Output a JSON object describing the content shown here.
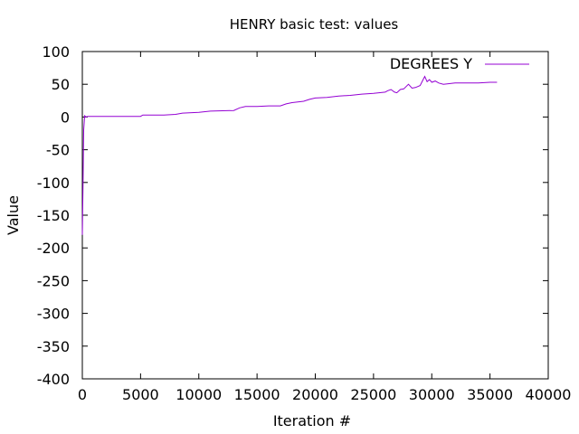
{
  "chart_data": {
    "type": "line",
    "title": "HENRY basic test: values",
    "xlabel": "Iteration #",
    "ylabel": "Value",
    "xlim": [
      0,
      40000
    ],
    "ylim": [
      -400,
      100
    ],
    "xticks": [
      0,
      5000,
      10000,
      15000,
      20000,
      25000,
      30000,
      35000,
      40000
    ],
    "yticks": [
      100,
      50,
      0,
      -50,
      -100,
      -150,
      -200,
      -250,
      -300,
      -350,
      -400
    ],
    "grid": false,
    "legend_position": "top-right",
    "series": [
      {
        "name": "DEGREES Y",
        "color": "#9400d3",
        "x": [
          0,
          60,
          120,
          200,
          300,
          500,
          1000,
          3000,
          5000,
          5200,
          7000,
          8000,
          8600,
          10000,
          11000,
          13000,
          13500,
          14000,
          15000,
          16000,
          17000,
          17500,
          18000,
          19000,
          19500,
          20000,
          21000,
          22000,
          23000,
          24000,
          25000,
          26000,
          26200,
          26500,
          26800,
          27000,
          27300,
          27600,
          28000,
          28300,
          28600,
          29000,
          29200,
          29400,
          29600,
          29800,
          30000,
          30300,
          30600,
          31000,
          31500,
          32000,
          33000,
          34000,
          35000,
          35600
        ],
        "y": [
          -180,
          -100,
          -20,
          2,
          0,
          1,
          1,
          1,
          1,
          3,
          3,
          4,
          6,
          7,
          9,
          10,
          14,
          16,
          16,
          17,
          17,
          20,
          22,
          24,
          27,
          29,
          30,
          32,
          33,
          35,
          36,
          38,
          40,
          42,
          38,
          37,
          42,
          43,
          50,
          44,
          45,
          48,
          55,
          62,
          54,
          57,
          53,
          55,
          52,
          50,
          51,
          52,
          52,
          52,
          53,
          53
        ]
      }
    ]
  },
  "page": {
    "title": "HENRY basic test: values",
    "xlabel": "Iteration #",
    "ylabel": "Value",
    "legend_label": "DEGREES Y"
  }
}
